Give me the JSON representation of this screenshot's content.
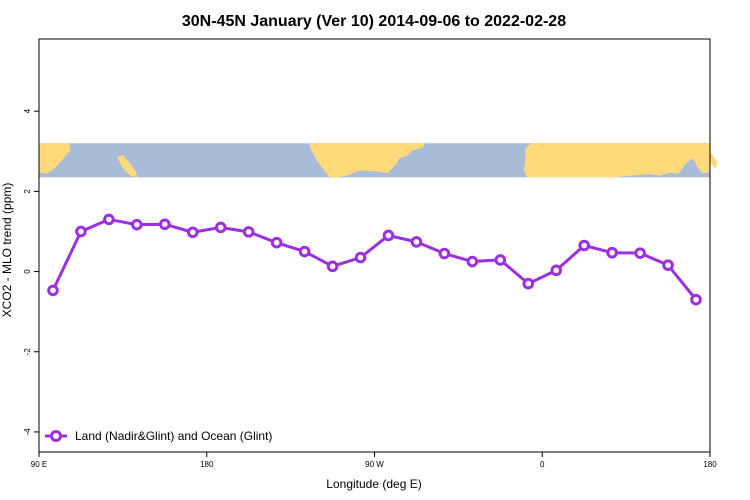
{
  "chart_data": {
    "type": "line",
    "title": "30N-45N January (Ver 10)   2014-09-06 to 2022-02-28",
    "xlabel": "Longitude (deg E)",
    "ylabel": "XCO2 - MLO trend (ppm)",
    "xlim": [
      90,
      450
    ],
    "ylim": [
      -4.5,
      5.8
    ],
    "x_ticks": [
      {
        "value": 90,
        "label": "90 E"
      },
      {
        "value": 180,
        "label": "180"
      },
      {
        "value": 270,
        "label": "90 W"
      },
      {
        "value": 360,
        "label": "0"
      },
      {
        "value": 450,
        "label": "180"
      }
    ],
    "y_ticks": [
      {
        "value": -4,
        "label": "-4"
      },
      {
        "value": -2,
        "label": "-2"
      },
      {
        "value": 0,
        "label": "0"
      },
      {
        "value": 2,
        "label": "2"
      },
      {
        "value": 4,
        "label": "4"
      }
    ],
    "map_band": {
      "y_range": [
        2.35,
        3.2
      ],
      "ocean_color": "#a8bcd8",
      "land_color": "#ffd97a"
    },
    "legend": {
      "position": "bottom-left"
    },
    "grid": false,
    "series": [
      {
        "name": "Land (Nadir&Glint) and Ocean (Glint)",
        "color": "#9b30e0",
        "x": [
          97.5,
          112.5,
          127.5,
          142.5,
          157.5,
          172.5,
          187.5,
          202.5,
          217.5,
          232.5,
          247.5,
          262.5,
          277.5,
          292.5,
          307.5,
          322.5,
          337.5,
          352.5,
          367.5,
          382.5,
          397.5,
          412.5,
          427.5,
          442.5
        ],
        "y": [
          -0.47,
          1.0,
          1.3,
          1.17,
          1.18,
          0.98,
          1.1,
          0.99,
          0.72,
          0.5,
          0.13,
          0.35,
          0.9,
          0.74,
          0.45,
          0.25,
          0.29,
          -0.3,
          0.03,
          0.65,
          0.47,
          0.46,
          0.16,
          -0.7
        ],
        "x_extra": [],
        "y_extra": []
      }
    ]
  }
}
